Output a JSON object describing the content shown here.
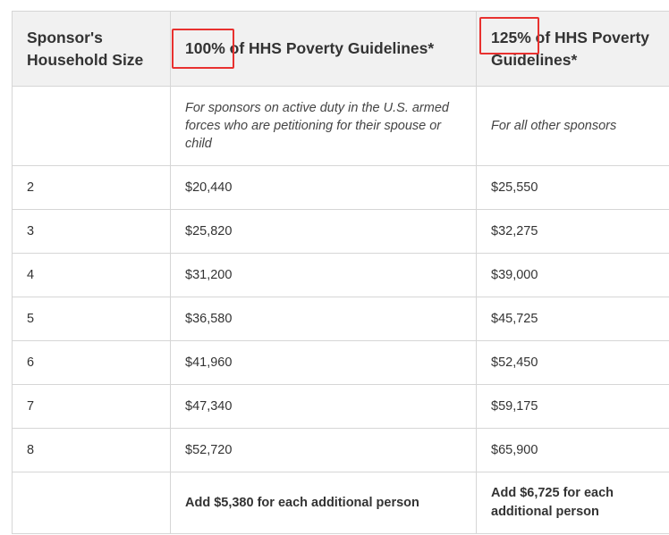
{
  "table": {
    "headers": {
      "col1": "Sponsor's Household Size",
      "col2_highlight": "100%",
      "col2_rest": " of HHS Poverty Guidelines*",
      "col3_highlight": "125%",
      "col3_rest": " of HHS Poverty Guidelines*"
    },
    "subheaders": {
      "col1": "",
      "col2": "For sponsors on active duty in the U.S. armed forces who are petitioning for their spouse or child",
      "col3": "For all other sponsors"
    },
    "rows": [
      {
        "size": "2",
        "p100": "$20,440",
        "p125": "$25,550"
      },
      {
        "size": "3",
        "p100": "$25,820",
        "p125": "$32,275"
      },
      {
        "size": "4",
        "p100": "$31,200",
        "p125": "$39,000"
      },
      {
        "size": "5",
        "p100": "$36,580",
        "p125": "$45,725"
      },
      {
        "size": "6",
        "p100": "$41,960",
        "p125": "$52,450"
      },
      {
        "size": "7",
        "p100": "$47,340",
        "p125": "$59,175"
      },
      {
        "size": "8",
        "p100": "$52,720",
        "p125": "$65,900"
      }
    ],
    "footer": {
      "col1": "",
      "col2": "Add $5,380 for each additional person",
      "col3": "Add $6,725 for each additional person"
    }
  },
  "highlight_color": "#e8312f"
}
